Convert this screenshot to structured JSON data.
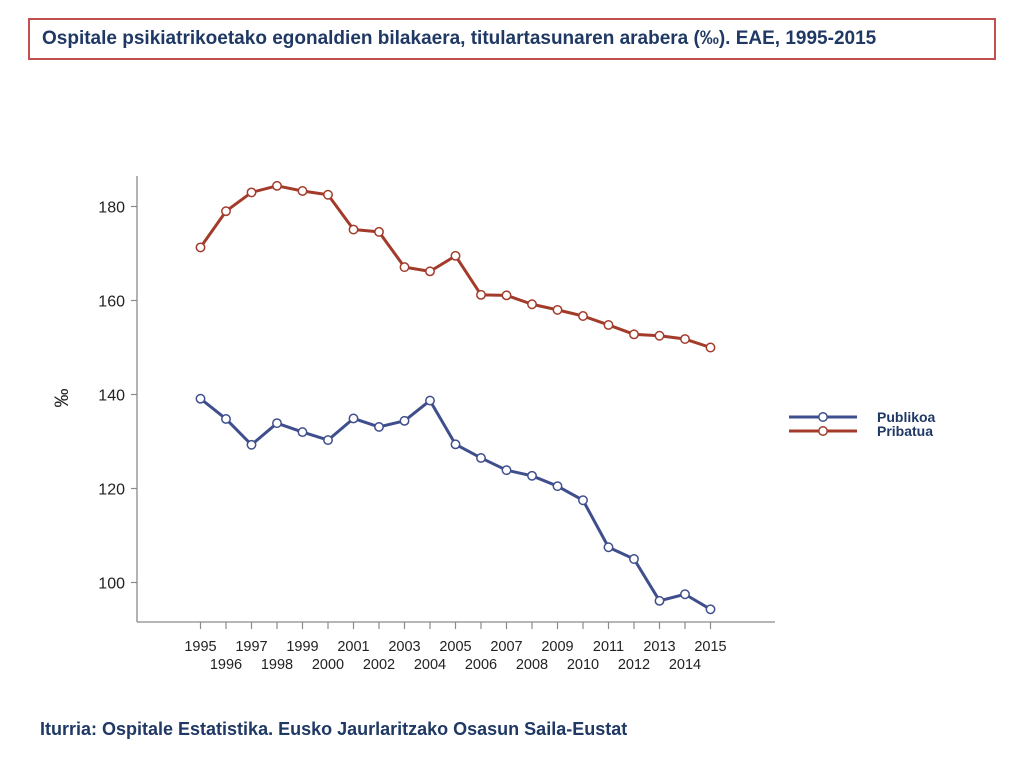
{
  "title": "Ospitale psikiatrikoetako egonaldien bilakaera, titulartasunaren arabera (‰). EAE, 1995-2015",
  "source": "Iturria: Ospitale Estatistika. Eusko Jaurlaritzako Osasun Saila-Eustat",
  "chart_data": {
    "type": "line",
    "title": "Ospitale psikiatrikoetako egonaldien bilakaera, titulartasunaren arabera (‰). EAE, 1995-2015",
    "xlabel": "",
    "ylabel": "‰",
    "ylim": [
      92,
      187
    ],
    "yticks": [
      100,
      120,
      140,
      160,
      180
    ],
    "grid": false,
    "legend_position": "right",
    "x": [
      "1995",
      "1996",
      "1997",
      "1998",
      "1999",
      "2000",
      "2001",
      "2002",
      "2003",
      "2004",
      "2005",
      "2006",
      "2007",
      "2008",
      "2009",
      "2010",
      "2011",
      "2012",
      "2013",
      "2014",
      "2015"
    ],
    "series": [
      {
        "name": "Publikoa",
        "color": "#3f4e8c",
        "marker": "open-circle",
        "values": [
          139.1,
          134.8,
          129.3,
          133.9,
          132.0,
          130.3,
          134.9,
          133.1,
          134.4,
          138.7,
          129.4,
          126.5,
          123.9,
          122.7,
          120.5,
          117.5,
          107.5,
          105.0,
          96.1,
          97.5,
          94.3
        ]
      },
      {
        "name": "Pribatua",
        "color": "#a33b2b",
        "marker": "open-circle",
        "values": [
          171.3,
          179.0,
          183.0,
          184.4,
          183.3,
          182.5,
          175.1,
          174.6,
          167.1,
          166.2,
          169.5,
          161.2,
          161.1,
          159.2,
          158.0,
          156.7,
          154.8,
          152.8,
          152.5,
          151.8,
          150.0
        ]
      }
    ]
  }
}
